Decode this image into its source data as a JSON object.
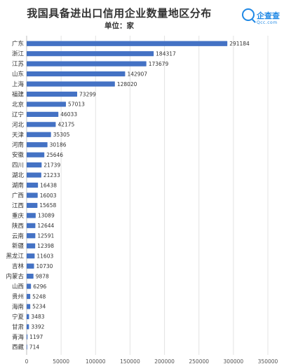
{
  "title": "我国具备进出口信用企业数量地区分布",
  "subtitle": "单位：家",
  "logo": {
    "name": "企查查",
    "sub": "Qcc.com",
    "icon": "magnifier-icon",
    "color": "#1f88e5"
  },
  "chart_data": {
    "type": "bar",
    "orientation": "horizontal",
    "title": "我国具备进出口信用企业数量地区分布",
    "subtitle": "单位：家",
    "categories": [
      "广东",
      "浙江",
      "江苏",
      "山东",
      "上海",
      "福建",
      "北京",
      "辽宁",
      "河北",
      "天津",
      "河南",
      "安徽",
      "四川",
      "湖北",
      "湖南",
      "广西",
      "江西",
      "重庆",
      "陕西",
      "云南",
      "新疆",
      "黑龙江",
      "吉林",
      "内蒙古",
      "山西",
      "贵州",
      "海南",
      "宁夏",
      "甘肃",
      "青海",
      "西藏"
    ],
    "values": [
      291184,
      184317,
      173679,
      142907,
      128020,
      73299,
      57013,
      46033,
      42175,
      35305,
      30186,
      25646,
      21739,
      21233,
      16438,
      16003,
      15658,
      13089,
      12644,
      12591,
      12398,
      11603,
      10730,
      9878,
      6296,
      5248,
      5234,
      3483,
      3392,
      1197,
      714
    ],
    "xlim": [
      0,
      350000
    ],
    "xticks": [
      0,
      50000,
      100000,
      150000,
      200000,
      250000,
      300000,
      350000
    ],
    "grid": true,
    "bar_color": "#4472c4"
  }
}
